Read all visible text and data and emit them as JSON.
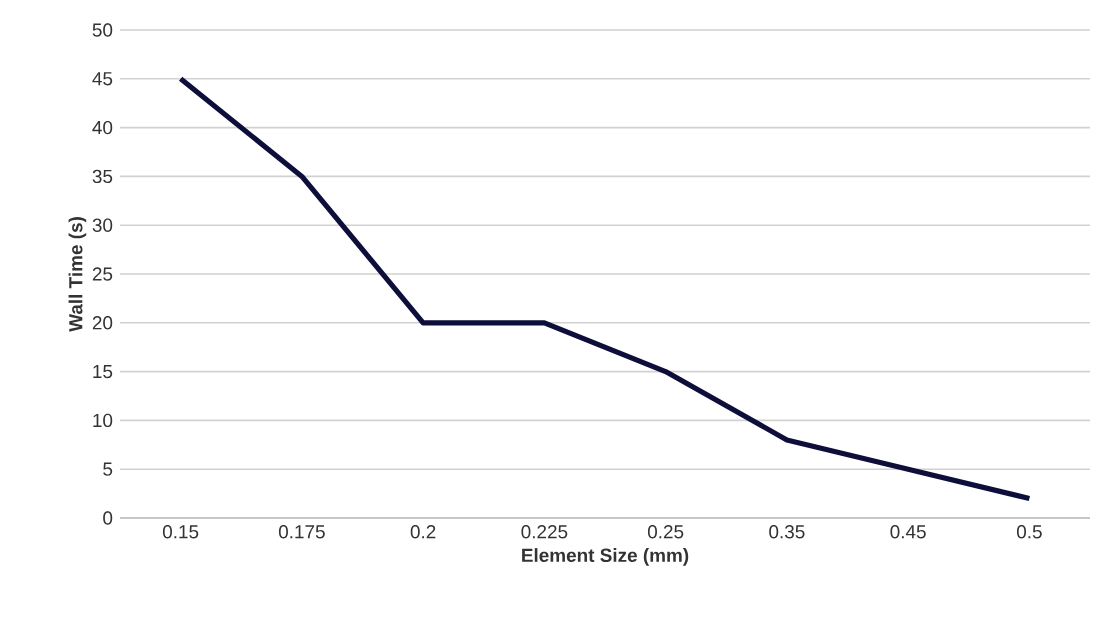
{
  "chart_data": {
    "type": "line",
    "xlabel": "Element Size (mm)",
    "ylabel": "Wall Time (s)",
    "categories": [
      "0.15",
      "0.175",
      "0.2",
      "0.225",
      "0.25",
      "0.35",
      "0.45",
      "0.5"
    ],
    "values": [
      45,
      35,
      20,
      20,
      15,
      8,
      5,
      2
    ],
    "color": "#0e0e3a",
    "ylim": [
      0,
      50
    ],
    "yticks": [
      0,
      5,
      10,
      15,
      20,
      25,
      30,
      35,
      40,
      45,
      50
    ],
    "grid": "y",
    "marker": "none",
    "line_style": "solid"
  }
}
